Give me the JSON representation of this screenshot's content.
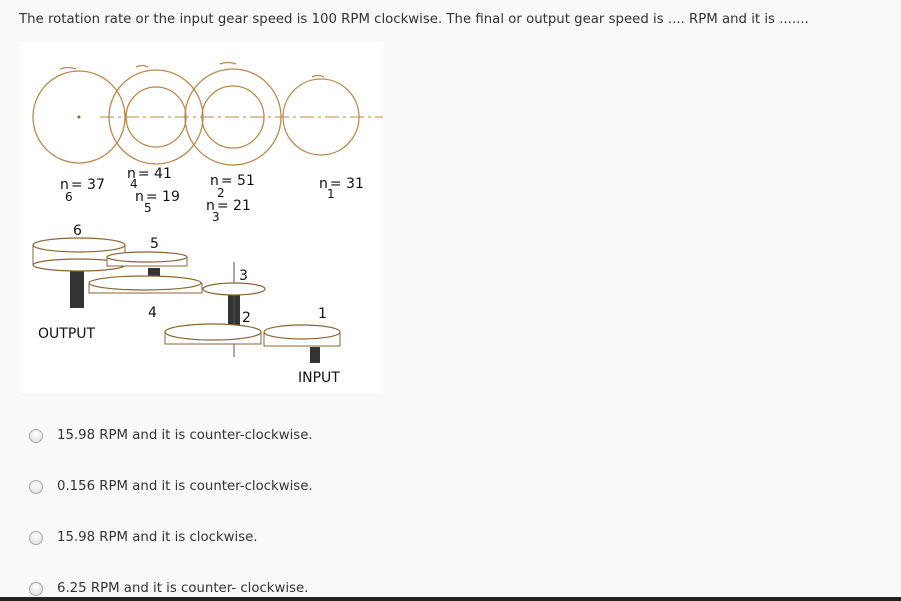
{
  "question": {
    "text": "The rotation rate or the input gear speed is 100 RPM clockwise. The final or output gear speed is .... RPM and it is ......."
  },
  "figure": {
    "gear_labels": {
      "n6": {
        "n": "n",
        "eq": "= 37",
        "sub": "6"
      },
      "n4": {
        "n": "n",
        "eq": "= 41",
        "sub": "4"
      },
      "n5": {
        "n": "n",
        "eq": "= 19",
        "sub": "5"
      },
      "n2": {
        "n": "n",
        "eq": "= 51",
        "sub": "2"
      },
      "n3": {
        "n": "n",
        "eq": "= 21",
        "sub": "3"
      },
      "n1": {
        "n": "n",
        "eq": "= 31",
        "sub": "1"
      }
    },
    "gear_numbers": [
      "6",
      "5",
      "4",
      "3",
      "2",
      "1"
    ],
    "output_label": "OUTPUT",
    "input_label": "INPUT"
  },
  "options": [
    {
      "label": "15.98 RPM and it is counter-clockwise."
    },
    {
      "label": "0.156 RPM and it is counter-clockwise."
    },
    {
      "label": "15.98 RPM and it is clockwise."
    },
    {
      "label": "6.25 RPM and it is counter- clockwise."
    }
  ]
}
